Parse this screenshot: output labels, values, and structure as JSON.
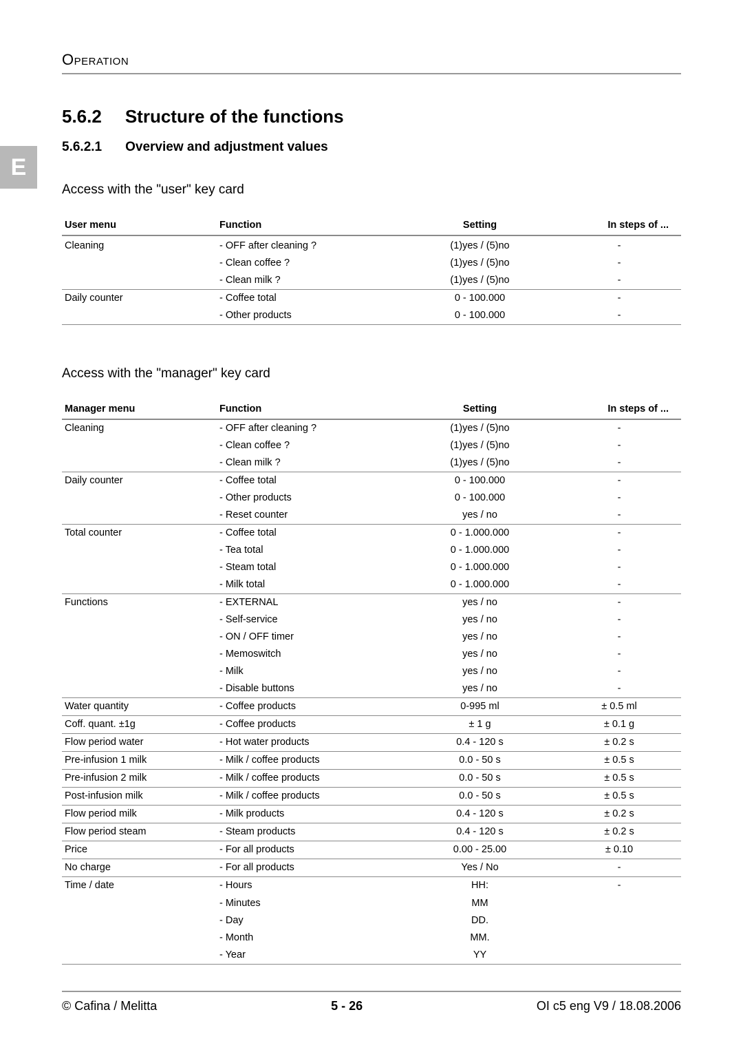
{
  "header": {
    "running": "Operation"
  },
  "tab": {
    "letter": "E"
  },
  "headings": {
    "h2_num": "5.6.2",
    "h2_title": "Structure of the functions",
    "h3_num": "5.6.2.1",
    "h3_title": "Overview and adjustment values"
  },
  "section_user": {
    "title": "Access with the \"user\" key card",
    "columns": [
      "User menu",
      "Function",
      "Setting",
      "In steps of ..."
    ],
    "groups": [
      {
        "menu": "Cleaning",
        "rows": [
          {
            "func": "- OFF after cleaning ?",
            "setting": "(1)yes / (5)no",
            "step": "-"
          },
          {
            "func": "- Clean coffee ?",
            "setting": "(1)yes / (5)no",
            "step": "-"
          },
          {
            "func": "- Clean milk ?",
            "setting": "(1)yes / (5)no",
            "step": "-"
          }
        ]
      },
      {
        "menu": "Daily counter",
        "rows": [
          {
            "func": "- Coffee total",
            "setting": "0 - 100.000",
            "step": "-"
          },
          {
            "func": "- Other products",
            "setting": "0 - 100.000",
            "step": "-"
          }
        ]
      }
    ]
  },
  "section_manager": {
    "title": "Access with the \"manager\" key card",
    "columns": [
      "Manager menu",
      "Function",
      "Setting",
      "In steps of ..."
    ],
    "groups": [
      {
        "menu": "Cleaning",
        "rows": [
          {
            "func": "- OFF after cleaning ?",
            "setting": "(1)yes / (5)no",
            "step": "-"
          },
          {
            "func": "- Clean coffee ?",
            "setting": "(1)yes / (5)no",
            "step": "-"
          },
          {
            "func": "- Clean milk ?",
            "setting": "(1)yes / (5)no",
            "step": "-"
          }
        ]
      },
      {
        "menu": "Daily counter",
        "rows": [
          {
            "func": "- Coffee total",
            "setting": "0 - 100.000",
            "step": "-"
          },
          {
            "func": "- Other products",
            "setting": "0 - 100.000",
            "step": "-"
          },
          {
            "func": "- Reset counter",
            "setting": "yes / no",
            "step": "-"
          }
        ]
      },
      {
        "menu": "Total counter",
        "rows": [
          {
            "func": "- Coffee total",
            "setting": "0 - 1.000.000",
            "step": "-"
          },
          {
            "func": "- Tea total",
            "setting": "0 - 1.000.000",
            "step": "-"
          },
          {
            "func": "- Steam total",
            "setting": "0 - 1.000.000",
            "step": "-"
          },
          {
            "func": "- Milk total",
            "setting": "0 - 1.000.000",
            "step": "-"
          }
        ]
      },
      {
        "menu": "Functions",
        "rows": [
          {
            "func": "- EXTERNAL",
            "setting": "yes / no",
            "step": "-"
          },
          {
            "func": "- Self-service",
            "setting": "yes / no",
            "step": "-"
          },
          {
            "func": "- ON / OFF timer",
            "setting": "yes / no",
            "step": "-"
          },
          {
            "func": "- Memoswitch",
            "setting": "yes / no",
            "step": "-"
          },
          {
            "func": "- Milk",
            "setting": "yes / no",
            "step": "-"
          },
          {
            "func": "- Disable buttons",
            "setting": "yes / no",
            "step": "-"
          }
        ]
      },
      {
        "menu": "Water quantity",
        "rows": [
          {
            "func": "- Coffee products",
            "setting": "0-995 ml",
            "step": "± 0.5 ml"
          }
        ]
      },
      {
        "menu": "Coff. quant. ±1g",
        "rows": [
          {
            "func": "- Coffee products",
            "setting": "± 1 g",
            "step": "± 0.1 g"
          }
        ]
      },
      {
        "menu": "Flow period water",
        "rows": [
          {
            "func": "- Hot water products",
            "setting": "0.4 - 120 s",
            "step": "± 0.2 s"
          }
        ]
      },
      {
        "menu": "Pre-infusion 1 milk",
        "rows": [
          {
            "func": "- Milk / coffee products",
            "setting": "0.0 - 50 s",
            "step": "± 0.5 s"
          }
        ]
      },
      {
        "menu": "Pre-infusion 2 milk",
        "rows": [
          {
            "func": "- Milk / coffee products",
            "setting": "0.0 - 50 s",
            "step": "± 0.5 s"
          }
        ]
      },
      {
        "menu": "Post-infusion milk",
        "rows": [
          {
            "func": "- Milk / coffee products",
            "setting": "0.0 - 50 s",
            "step": "± 0.5 s"
          }
        ]
      },
      {
        "menu": "Flow period milk",
        "rows": [
          {
            "func": "- Milk products",
            "setting": "0.4 - 120 s",
            "step": "± 0.2 s"
          }
        ]
      },
      {
        "menu": "Flow period steam",
        "rows": [
          {
            "func": "- Steam products",
            "setting": "0.4 - 120 s",
            "step": "± 0.2 s"
          }
        ]
      },
      {
        "menu": "Price",
        "rows": [
          {
            "func": "- For all products",
            "setting": "0.00 - 25.00",
            "step": "± 0.10"
          }
        ]
      },
      {
        "menu": "No charge",
        "rows": [
          {
            "func": "- For all products",
            "setting": "Yes / No",
            "step": "-"
          }
        ]
      },
      {
        "menu": "Time / date",
        "rows": [
          {
            "func": "- Hours",
            "setting": "HH:",
            "step": "-"
          },
          {
            "func": "- Minutes",
            "setting": "MM",
            "step": ""
          },
          {
            "func": "- Day",
            "setting": "DD.",
            "step": ""
          },
          {
            "func": "- Month",
            "setting": "MM.",
            "step": ""
          },
          {
            "func": "- Year",
            "setting": "YY",
            "step": ""
          }
        ]
      }
    ]
  },
  "footer": {
    "left": "© Cafina / Melitta",
    "center": "5 - 26",
    "right": "OI c5 eng V9 / 18.08.2006"
  }
}
